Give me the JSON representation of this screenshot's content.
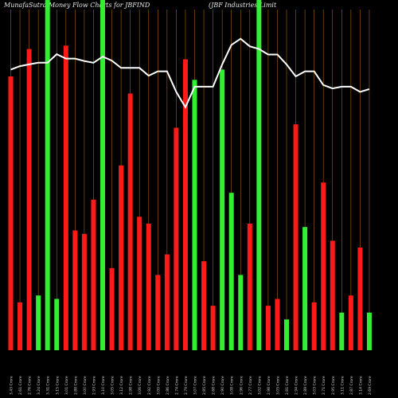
{
  "header": {
    "title_left": "MunafaSutra  Money Flow  Charts for JBFIND",
    "title_right": "(JBF Industries Limit"
  },
  "chart_data": {
    "type": "bar",
    "title": "MunafaSutra  Money Flow  Charts for JBFIND",
    "subtitle": "(JBF Industries Limit",
    "colors": {
      "up": "#33ee33",
      "down": "#ff1a1a",
      "line": "#ffffff",
      "grid": "#a0620e",
      "background": "#000000"
    },
    "ylim": [
      0,
      100
    ],
    "grid": true,
    "bars": [
      {
        "v": 80,
        "c": "down"
      },
      {
        "v": 14,
        "c": "down"
      },
      {
        "v": 88,
        "c": "down"
      },
      {
        "v": 16,
        "c": "up"
      },
      {
        "v": 100,
        "c": "up"
      },
      {
        "v": 15,
        "c": "up"
      },
      {
        "v": 89,
        "c": "down"
      },
      {
        "v": 35,
        "c": "down"
      },
      {
        "v": 34,
        "c": "down"
      },
      {
        "v": 44,
        "c": "down"
      },
      {
        "v": 100,
        "c": "up"
      },
      {
        "v": 24,
        "c": "down"
      },
      {
        "v": 54,
        "c": "down"
      },
      {
        "v": 75,
        "c": "down"
      },
      {
        "v": 39,
        "c": "down"
      },
      {
        "v": 37,
        "c": "down"
      },
      {
        "v": 22,
        "c": "down"
      },
      {
        "v": 28,
        "c": "down"
      },
      {
        "v": 65,
        "c": "down"
      },
      {
        "v": 85,
        "c": "down"
      },
      {
        "v": 79,
        "c": "up"
      },
      {
        "v": 26,
        "c": "down"
      },
      {
        "v": 13,
        "c": "down"
      },
      {
        "v": 82,
        "c": "up"
      },
      {
        "v": 46,
        "c": "up"
      },
      {
        "v": 22,
        "c": "up"
      },
      {
        "v": 37,
        "c": "down"
      },
      {
        "v": 100,
        "c": "up"
      },
      {
        "v": 13,
        "c": "down"
      },
      {
        "v": 15,
        "c": "down"
      },
      {
        "v": 9,
        "c": "up"
      },
      {
        "v": 66,
        "c": "down"
      },
      {
        "v": 36,
        "c": "up"
      },
      {
        "v": 14,
        "c": "down"
      },
      {
        "v": 49,
        "c": "down"
      },
      {
        "v": 32,
        "c": "down"
      },
      {
        "v": 11,
        "c": "up"
      },
      {
        "v": 16,
        "c": "down"
      },
      {
        "v": 30,
        "c": "down"
      },
      {
        "v": 11,
        "c": "up"
      }
    ],
    "line": [
      82,
      83,
      83.5,
      84,
      84,
      86.5,
      85.2,
      85.2,
      84.5,
      84,
      85.8,
      84.6,
      82.5,
      82.5,
      82.5,
      80.2,
      81.5,
      81.5,
      75.5,
      71,
      77,
      77,
      77,
      83.5,
      89.2,
      91,
      88.8,
      88,
      86.4,
      86.4,
      83.5,
      80,
      81.5,
      81.5,
      77.5,
      76.5,
      77,
      77,
      75.5,
      76.3
    ],
    "xtick_labels": [
      "3.43 Crore",
      "2.61 Crore",
      "2.76 Crore",
      "3.24 Crore",
      "3.31 Crore",
      "3.15 Crore",
      "3.01 Crore",
      "2.88 Crore",
      "3.00 Crore",
      "2.93 Crore",
      "3.10 Crore",
      "3.05 Crore",
      "3.12 Crore",
      "2.98 Crore",
      "3.06 Crore",
      "2.92 Crore",
      "3.09 Crore",
      "2.86 Crore",
      "2.74 Crore",
      "2.79 Crore",
      "3.07 Crore",
      "2.85 Crore",
      "2.68 Crore",
      "2.90 Crore",
      "3.08 Crore",
      "2.96 Crore",
      "2.77 Crore",
      "3.02 Crore",
      "2.98 Crore",
      "3.05 Crore",
      "2.81 Crore",
      "2.94 Crore",
      "2.89 Crore",
      "3.03 Crore",
      "2.71 Crore",
      "2.95 Crore",
      "3.11 Crore",
      "2.87 Crore",
      "3.14 Crore",
      "2.69 Crore"
    ]
  }
}
